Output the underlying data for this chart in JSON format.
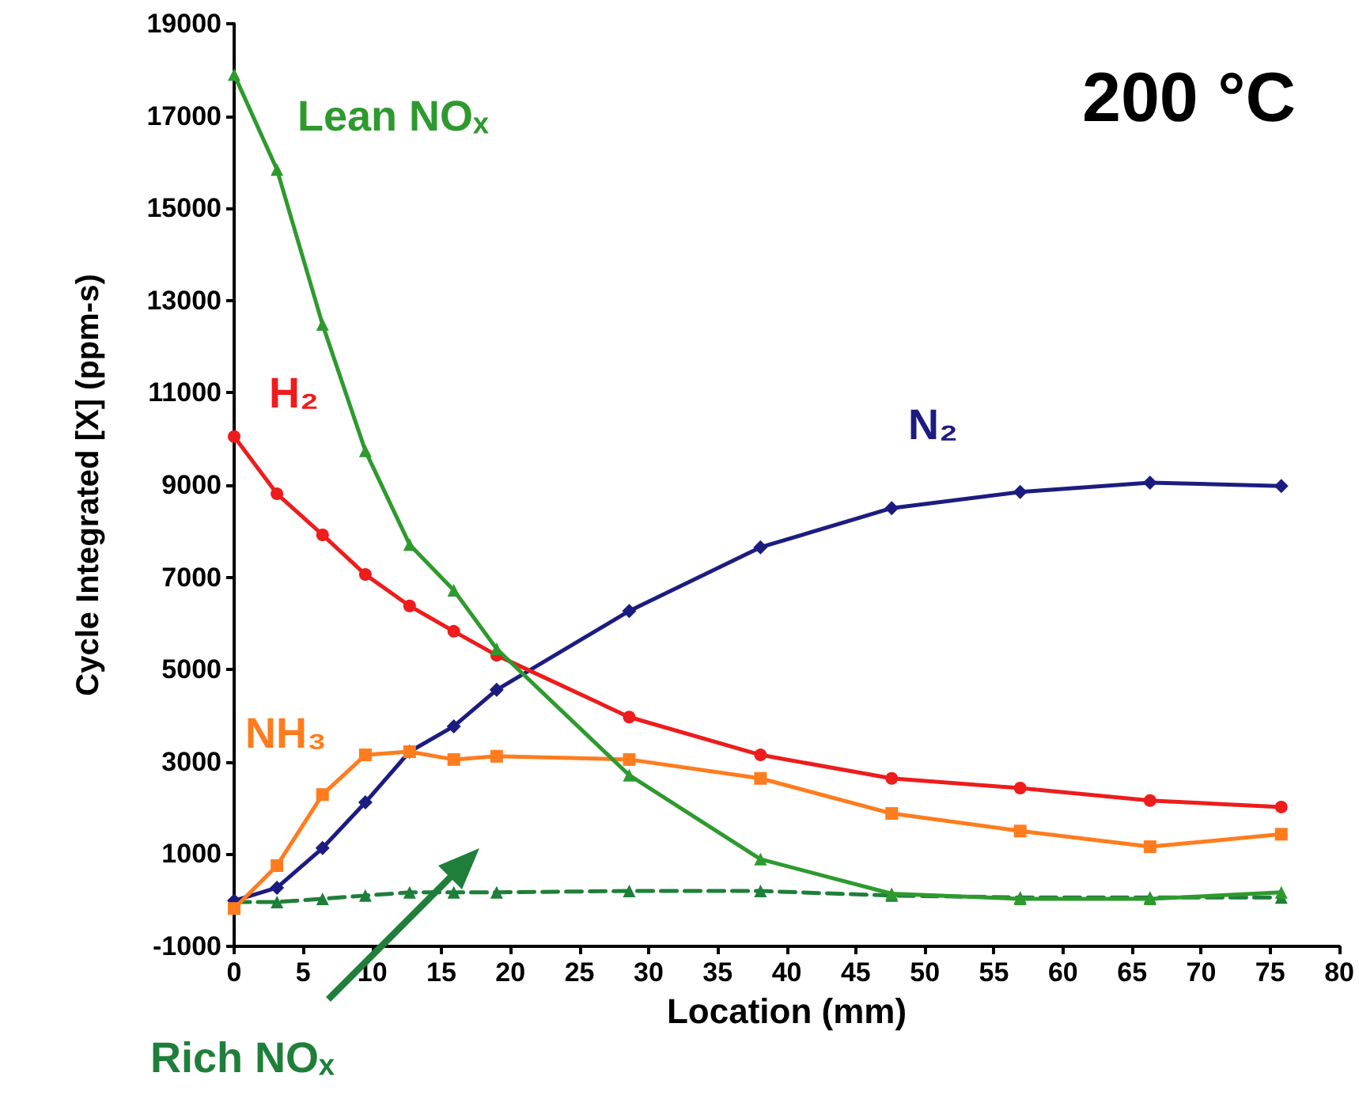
{
  "chart_data": {
    "type": "line",
    "xlabel": "Location (mm)",
    "ylabel": "Cycle Integrated [X] (ppm-s)",
    "annotations": [
      "200 °C"
    ],
    "x": [
      0,
      3.1,
      6.4,
      9.5,
      12.7,
      15.9,
      19,
      28.6,
      38.1,
      47.6,
      56.9,
      66.3,
      75.8
    ],
    "xlim": [
      0,
      80
    ],
    "xticks": [
      0,
      5,
      10,
      15,
      20,
      25,
      30,
      35,
      40,
      45,
      50,
      55,
      60,
      65,
      70,
      75,
      80
    ],
    "ylim": [
      -1000,
      19000
    ],
    "yticks": [
      -1000,
      1000,
      3000,
      5000,
      7000,
      9000,
      11000,
      13000,
      15000,
      17000,
      19000
    ],
    "grid": false,
    "legend": false,
    "series": [
      {
        "name": "Lean NOₓ",
        "color": "#2e9a2e",
        "marker": "triangle",
        "line_style": "solid",
        "values": [
          17900,
          15840,
          12480,
          9740,
          7710,
          6720,
          5450,
          2710,
          890,
          140,
          30,
          30,
          170
        ]
      },
      {
        "name": "H₂",
        "color": "#ee1c1c",
        "marker": "circle",
        "line_style": "solid",
        "values": [
          10050,
          8810,
          7920,
          7060,
          6380,
          5830,
          5310,
          3970,
          3150,
          2640,
          2430,
          2160,
          2020
        ]
      },
      {
        "name": "NH₃",
        "color": "#ff7c1e",
        "marker": "square",
        "line_style": "solid",
        "values": [
          -180,
          750,
          2290,
          3150,
          3220,
          3050,
          3120,
          3050,
          2640,
          1880,
          1500,
          1160,
          1430
        ]
      },
      {
        "name": "N₂",
        "color": "#1c1c80",
        "marker": "diamond",
        "line_style": "solid",
        "values": [
          -10,
          270,
          1130,
          2120,
          3220,
          3770,
          4560,
          6270,
          7650,
          8500,
          8850,
          9050,
          8980
        ]
      },
      {
        "name": "Rich NOₓ",
        "color": "#1f7f3a",
        "marker": "triangle",
        "line_style": "dashed",
        "values": [
          -40,
          -40,
          30,
          100,
          170,
          170,
          170,
          200,
          200,
          100,
          60,
          60,
          60
        ]
      }
    ]
  }
}
